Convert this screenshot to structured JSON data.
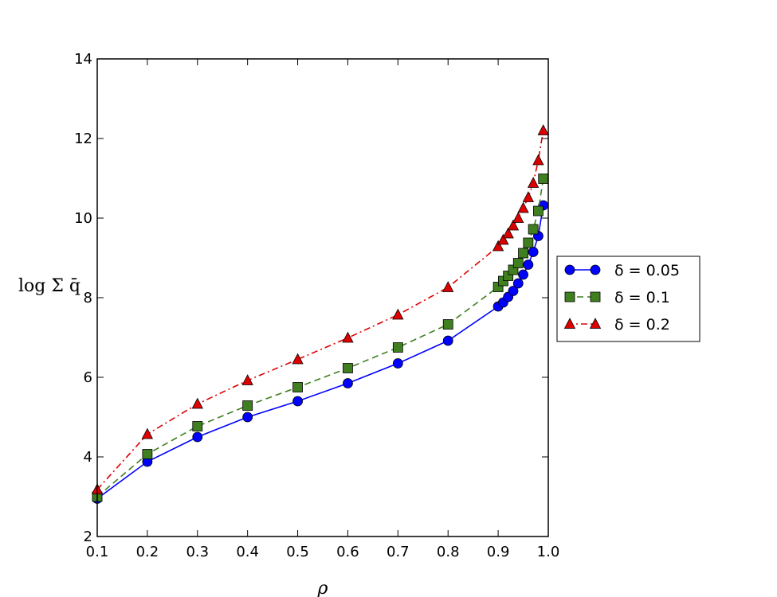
{
  "chart_data": {
    "type": "line",
    "xlabel": "ρ",
    "ylabel": "log Σ q̄",
    "xlim": [
      0.1,
      1.0
    ],
    "ylim": [
      2,
      14
    ],
    "xticks": [
      0.1,
      0.2,
      0.3,
      0.4,
      0.5,
      0.6,
      0.7,
      0.8,
      0.9,
      1.0
    ],
    "xtick_labels": [
      "0.1",
      "0.2",
      "0.3",
      "0.4",
      "0.5",
      "0.6",
      "0.7",
      "0.8",
      "0.9",
      "1.0"
    ],
    "yticks": [
      2,
      4,
      6,
      8,
      10,
      12,
      14
    ],
    "ytick_labels": [
      "2",
      "4",
      "6",
      "8",
      "10",
      "12",
      "14"
    ],
    "grid": false,
    "legend_position": "outside-right",
    "series": [
      {
        "name": "δ = 0.05",
        "color": "#0000ff",
        "marker": "circle",
        "linestyle": "solid",
        "x": [
          0.1,
          0.2,
          0.3,
          0.4,
          0.5,
          0.6,
          0.7,
          0.8,
          0.9,
          0.91,
          0.92,
          0.93,
          0.94,
          0.95,
          0.96,
          0.97,
          0.98,
          0.99
        ],
        "y": [
          2.95,
          3.88,
          4.5,
          5.0,
          5.4,
          5.85,
          6.35,
          6.92,
          7.78,
          7.88,
          8.02,
          8.17,
          8.36,
          8.58,
          8.83,
          9.15,
          9.55,
          10.32
        ]
      },
      {
        "name": "δ = 0.1",
        "color": "#3f7f1f",
        "marker": "square",
        "linestyle": "dashed",
        "x": [
          0.1,
          0.2,
          0.3,
          0.4,
          0.5,
          0.6,
          0.7,
          0.8,
          0.9,
          0.91,
          0.92,
          0.93,
          0.94,
          0.95,
          0.96,
          0.97,
          0.98,
          0.99
        ],
        "y": [
          3.0,
          4.07,
          4.77,
          5.29,
          5.75,
          6.23,
          6.75,
          7.33,
          8.27,
          8.42,
          8.55,
          8.7,
          8.87,
          9.12,
          9.38,
          9.72,
          10.18,
          10.99
        ]
      },
      {
        "name": "δ = 0.2",
        "color": "#dd0000",
        "marker": "triangle",
        "linestyle": "dashdot",
        "x": [
          0.1,
          0.2,
          0.3,
          0.4,
          0.5,
          0.6,
          0.7,
          0.8,
          0.9,
          0.91,
          0.92,
          0.93,
          0.94,
          0.95,
          0.96,
          0.97,
          0.98,
          0.99
        ],
        "y": [
          3.18,
          4.57,
          5.33,
          5.92,
          6.45,
          6.99,
          7.57,
          8.26,
          9.29,
          9.45,
          9.61,
          9.81,
          10.0,
          10.25,
          10.52,
          10.88,
          11.45,
          12.2
        ]
      }
    ]
  }
}
